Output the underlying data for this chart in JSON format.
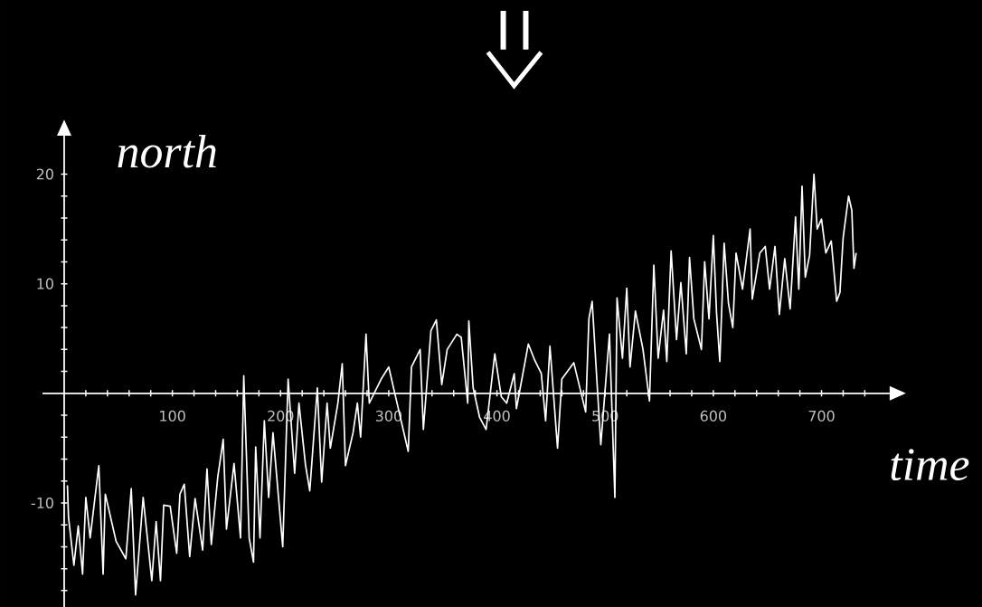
{
  "chart_data": {
    "type": "line",
    "xlabel": "time",
    "ylabel": "north",
    "xlim": [
      -20,
      763
    ],
    "ylim": [
      -19.5,
      23.5
    ],
    "xticks": [
      {
        "value": 20,
        "label": null
      },
      {
        "value": 40,
        "label": null
      },
      {
        "value": 60,
        "label": null
      },
      {
        "value": 80,
        "label": null
      },
      100,
      {
        "value": 120,
        "label": null
      },
      {
        "value": 140,
        "label": null
      },
      {
        "value": 160,
        "label": null
      },
      {
        "value": 180,
        "label": null
      },
      200,
      {
        "value": 220,
        "label": null
      },
      {
        "value": 240,
        "label": null
      },
      {
        "value": 260,
        "label": null
      },
      {
        "value": 280,
        "label": null
      },
      300,
      {
        "value": 320,
        "label": null
      },
      {
        "value": 340,
        "label": null
      },
      {
        "value": 360,
        "label": null
      },
      {
        "value": 380,
        "label": null
      },
      400,
      {
        "value": 420,
        "label": null
      },
      {
        "value": 440,
        "label": null
      },
      {
        "value": 460,
        "label": null
      },
      {
        "value": 480,
        "label": null
      },
      500,
      {
        "value": 520,
        "label": null
      },
      {
        "value": 540,
        "label": null
      },
      {
        "value": 560,
        "label": null
      },
      {
        "value": 580,
        "label": null
      },
      600,
      {
        "value": 620,
        "label": null
      },
      {
        "value": 640,
        "label": null
      },
      {
        "value": 660,
        "label": null
      },
      {
        "value": 680,
        "label": null
      },
      700,
      {
        "value": 720,
        "label": null
      },
      {
        "value": 740,
        "label": null
      }
    ],
    "yticks": [
      {
        "value": -18,
        "label": null
      },
      {
        "value": -16,
        "label": null
      },
      {
        "value": -14,
        "label": null
      },
      {
        "value": -12,
        "label": null
      },
      -10,
      {
        "value": -8,
        "label": null
      },
      {
        "value": -6,
        "label": null
      },
      {
        "value": -4,
        "label": null
      },
      {
        "value": -2,
        "label": null
      },
      {
        "value": 2,
        "label": null
      },
      {
        "value": 4,
        "label": null
      },
      {
        "value": 6,
        "label": null
      },
      {
        "value": 8,
        "label": null
      },
      10,
      {
        "value": 12,
        "label": null
      },
      {
        "value": 14,
        "label": null
      },
      {
        "value": 16,
        "label": null
      },
      {
        "value": 18,
        "label": null
      },
      20
    ],
    "grid": false,
    "series": [
      {
        "color": "#ffffff",
        "x": [
          3,
          4,
          9,
          13,
          17,
          20,
          24,
          32,
          36,
          38,
          48,
          57,
          62,
          66,
          73,
          81,
          85,
          89,
          92,
          98,
          104,
          107,
          111,
          116,
          121,
          128,
          132,
          136,
          142,
          147,
          150,
          157,
          163,
          166,
          171,
          175,
          177,
          181,
          185,
          189,
          193,
          202,
          207,
          213,
          217,
          223,
          227,
          234,
          238,
          243,
          246,
          253,
          257,
          260,
          267,
          271,
          274,
          279,
          282,
          293,
          300,
          307,
          318,
          321,
          329,
          332,
          339,
          344,
          349,
          354,
          363,
          367,
          373,
          374,
          378,
          384,
          390,
          398,
          404,
          409,
          416,
          418,
          429,
          435,
          441,
          445,
          449,
          456,
          460,
          471,
          482,
          485,
          488,
          492,
          496,
          504,
          509,
          511,
          516,
          520,
          523,
          528,
          535,
          541,
          545,
          549,
          554,
          557,
          561,
          566,
          570,
          575,
          578,
          582,
          589,
          592,
          596,
          600,
          603,
          606,
          610,
          614,
          618,
          621,
          627,
          634,
          636,
          643,
          648,
          652,
          657,
          661,
          666,
          671,
          676,
          679,
          682,
          685,
          689,
          693,
          696,
          700,
          704,
          709,
          714,
          717,
          720,
          725,
          728,
          730,
          732
        ],
        "values": [
          -8.4,
          -11.3,
          -15.7,
          -12.1,
          -16.5,
          -9.5,
          -13.2,
          -6.6,
          -16.5,
          -9.2,
          -13.5,
          -15.1,
          -8.7,
          -18.4,
          -9.5,
          -17.1,
          -11.7,
          -17.1,
          -10.2,
          -10.3,
          -14.6,
          -9.2,
          -8.3,
          -14.9,
          -9.6,
          -14.3,
          -6.9,
          -13.8,
          -7.6,
          -4.2,
          -12.4,
          -6.4,
          -13.2,
          1.6,
          -13.2,
          -15.4,
          -4.9,
          -13.2,
          -2.5,
          -9.5,
          -3.6,
          -14.0,
          1.3,
          -7.3,
          -0.9,
          -6.5,
          -8.9,
          0.5,
          -8.1,
          -0.9,
          -5.0,
          -0.9,
          2.7,
          -6.6,
          -3.6,
          -0.9,
          -4.0,
          5.4,
          -0.9,
          1.3,
          2.4,
          -0.6,
          -5.3,
          2.4,
          4.0,
          -3.3,
          5.7,
          6.7,
          0.8,
          4.0,
          5.4,
          5.1,
          -0.9,
          6.6,
          0.5,
          -2.2,
          -3.3,
          3.6,
          -0.3,
          -0.9,
          1.8,
          -1.4,
          4.5,
          3.0,
          1.8,
          -2.5,
          4.3,
          -5.0,
          1.3,
          2.8,
          -1.7,
          6.8,
          8.4,
          1.8,
          -4.7,
          5.4,
          -9.5,
          8.7,
          3.2,
          9.6,
          2.4,
          7.5,
          4.0,
          -0.7,
          11.7,
          3.2,
          7.6,
          2.9,
          13.0,
          4.9,
          10.1,
          3.6,
          12.4,
          6.8,
          4.0,
          12.0,
          6.8,
          14.4,
          7.3,
          2.9,
          13.7,
          8.2,
          6.0,
          12.8,
          9.5,
          15.0,
          8.6,
          12.8,
          13.4,
          9.5,
          13.4,
          7.2,
          12.3,
          7.7,
          16.1,
          9.5,
          18.9,
          10.6,
          12.6,
          20.0,
          15.0,
          15.9,
          12.8,
          13.9,
          8.4,
          9.2,
          14.2,
          18.0,
          16.7,
          11.4,
          12.8
        ]
      }
    ]
  }
}
